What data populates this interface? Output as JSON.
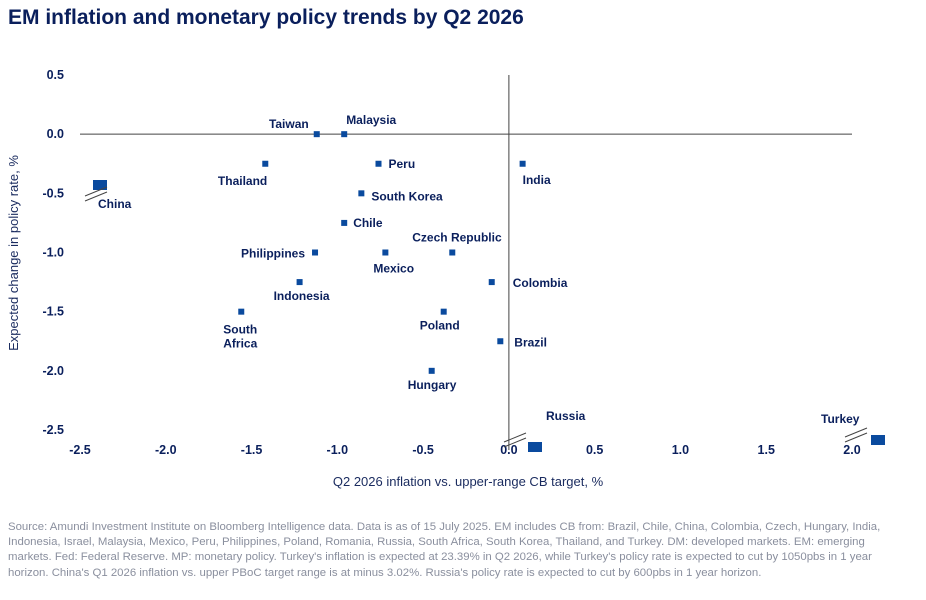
{
  "title": "EM inflation and monetary policy trends by Q2 2026",
  "source": "Source: Amundi Investment Institute on Bloomberg Intelligence data. Data is as of 15 July 2025. EM includes CB from: Brazil, Chile, China, Colombia, Czech, Hungary, India, Indonesia, Israel, Malaysia, Mexico, Peru, Philippines, Poland, Romania, Russia, South Africa, South Korea, Thailand, and Turkey. DM: developed markets. EM: emerging markets. Fed: Federal Reserve. MP: monetary policy. Turkey's inflation is expected at 23.39% in Q2 2026, while Turkey's policy rate is expected to cut by 1050pbs in 1 year horizon. China's Q1 2026 inflation vs. upper PBoC target range is at minus 3.02%. Russia's policy rate is expected to cut by 600pbs in 1 year horizon.",
  "chart_data": {
    "type": "scatter",
    "title": "EM inflation and monetary policy trends by Q2 2026",
    "xlabel": "Q2 2026 inflation vs. upper-range CB target, %",
    "ylabel": "Expected change in policy rate, %",
    "xlim": [
      -2.5,
      2.0
    ],
    "ylim": [
      -2.5,
      0.5
    ],
    "xticks": [
      "-2.5",
      "-2.0",
      "-1.5",
      "-1.0",
      "-0.5",
      "0.0",
      "0.5",
      "1.0",
      "1.5",
      "2.0"
    ],
    "yticks": [
      "0.5",
      "0.0",
      "-0.5",
      "-1.0",
      "-1.5",
      "-2.0",
      "-2.5"
    ],
    "color": "#0a4a9e",
    "points": [
      {
        "name": "Taiwan",
        "x": -1.12,
        "y": 0.0
      },
      {
        "name": "Malaysia",
        "x": -0.96,
        "y": 0.0
      },
      {
        "name": "Thailand",
        "x": -1.42,
        "y": -0.25
      },
      {
        "name": "Peru",
        "x": -0.76,
        "y": -0.25
      },
      {
        "name": "India",
        "x": 0.08,
        "y": -0.25
      },
      {
        "name": "South Korea",
        "x": -0.86,
        "y": -0.5
      },
      {
        "name": "Chile",
        "x": -0.96,
        "y": -0.75
      },
      {
        "name": "Philippines",
        "x": -1.13,
        "y": -1.0
      },
      {
        "name": "Mexico",
        "x": -0.72,
        "y": -1.0
      },
      {
        "name": "Czech Republic",
        "x": -0.33,
        "y": -1.0
      },
      {
        "name": "Indonesia",
        "x": -1.22,
        "y": -1.25
      },
      {
        "name": "Colombia",
        "x": -0.1,
        "y": -1.25
      },
      {
        "name": "South Africa",
        "x": -1.56,
        "y": -1.5
      },
      {
        "name": "Poland",
        "x": -0.38,
        "y": -1.5
      },
      {
        "name": "Brazil",
        "x": -0.05,
        "y": -1.75
      },
      {
        "name": "Hungary",
        "x": -0.45,
        "y": -2.0
      }
    ],
    "outliers": [
      {
        "name": "China",
        "x": -3.02,
        "y": -0.43,
        "note": "off-scale, shown at left edge"
      },
      {
        "name": "Russia",
        "x": 0.1,
        "y": -6.0,
        "note": "off-scale, shown at bottom"
      },
      {
        "name": "Turkey",
        "x": 23.39,
        "y": -10.5,
        "note": "off-scale, shown at bottom-right"
      }
    ]
  }
}
